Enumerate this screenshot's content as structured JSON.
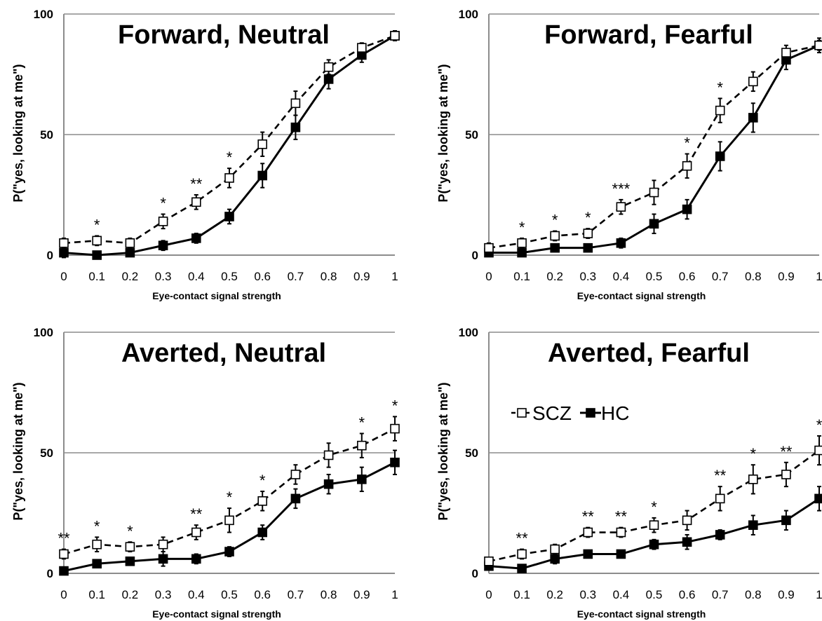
{
  "chart_data": [
    {
      "type": "line",
      "title": "Forward, Neutral",
      "xlabel": "Eye-contact signal strength",
      "ylabel": "P(\"yes, looking at me\")",
      "x": [
        "0",
        "0.1",
        "0.2",
        "0.3",
        "0.4",
        "0.5",
        "0.6",
        "0.7",
        "0.8",
        "0.9",
        "1"
      ],
      "y_ticks": [
        "0",
        "50",
        "100"
      ],
      "ylim": [
        0,
        100
      ],
      "grid": "horizontal",
      "series": [
        {
          "name": "SCZ",
          "line": "dashed",
          "marker": "open-square",
          "values": [
            5,
            6,
            5,
            14,
            22,
            32,
            46,
            63,
            78,
            86,
            91
          ],
          "errors": [
            2,
            2,
            2,
            3,
            3,
            4,
            5,
            5,
            3,
            2,
            2
          ]
        },
        {
          "name": "HC",
          "line": "solid",
          "marker": "filled-square",
          "values": [
            1,
            0,
            1,
            4,
            7,
            16,
            33,
            53,
            73,
            83,
            91
          ],
          "errors": [
            2,
            1,
            1,
            2,
            2,
            3,
            5,
            5,
            4,
            3,
            2
          ]
        }
      ],
      "significance": [
        {
          "x": "0.1",
          "label": "*"
        },
        {
          "x": "0.3",
          "label": "*"
        },
        {
          "x": "0.4",
          "label": "**"
        },
        {
          "x": "0.5",
          "label": "*"
        }
      ]
    },
    {
      "type": "line",
      "title": "Forward, Fearful",
      "xlabel": "Eye-contact signal strength",
      "ylabel": "P(\"yes, looking at me\")",
      "x": [
        "0",
        "0.1",
        "0.2",
        "0.3",
        "0.4",
        "0.5",
        "0.6",
        "0.7",
        "0.8",
        "0.9",
        "1"
      ],
      "y_ticks": [
        "0",
        "50",
        "100"
      ],
      "ylim": [
        0,
        100
      ],
      "grid": "horizontal",
      "series": [
        {
          "name": "SCZ",
          "line": "dashed",
          "marker": "open-square",
          "values": [
            3,
            5,
            8,
            9,
            20,
            26,
            37,
            60,
            72,
            84,
            87
          ],
          "errors": [
            2,
            2,
            2,
            2,
            3,
            5,
            5,
            5,
            4,
            3,
            2
          ]
        },
        {
          "name": "HC",
          "line": "solid",
          "marker": "filled-square",
          "values": [
            1,
            1,
            3,
            3,
            5,
            13,
            19,
            41,
            57,
            81,
            87
          ],
          "errors": [
            1,
            1,
            1,
            1,
            2,
            4,
            4,
            6,
            6,
            4,
            3
          ]
        }
      ],
      "significance": [
        {
          "x": "0.1",
          "label": "*"
        },
        {
          "x": "0.2",
          "label": "*"
        },
        {
          "x": "0.3",
          "label": "*"
        },
        {
          "x": "0.4",
          "label": "***"
        },
        {
          "x": "0.6",
          "label": "*"
        },
        {
          "x": "0.7",
          "label": "*"
        }
      ]
    },
    {
      "type": "line",
      "title": "Averted, Neutral",
      "xlabel": "Eye-contact signal strength",
      "ylabel": "P(\"yes, looking at me\")",
      "x": [
        "0",
        "0.1",
        "0.2",
        "0.3",
        "0.4",
        "0.5",
        "0.6",
        "0.7",
        "0.8",
        "0.9",
        "1"
      ],
      "y_ticks": [
        "0",
        "50",
        "100"
      ],
      "ylim": [
        0,
        100
      ],
      "grid": "horizontal",
      "series": [
        {
          "name": "SCZ",
          "line": "dashed",
          "marker": "open-square",
          "values": [
            8,
            12,
            11,
            12,
            17,
            22,
            30,
            41,
            49,
            53,
            60
          ],
          "errors": [
            2,
            3,
            2,
            3,
            3,
            5,
            4,
            4,
            5,
            5,
            5
          ]
        },
        {
          "name": "HC",
          "line": "solid",
          "marker": "filled-square",
          "values": [
            1,
            4,
            5,
            6,
            6,
            9,
            17,
            31,
            37,
            39,
            46
          ],
          "errors": [
            1,
            1,
            1,
            3,
            2,
            2,
            3,
            4,
            4,
            5,
            5
          ]
        }
      ],
      "significance": [
        {
          "x": "0",
          "label": "**"
        },
        {
          "x": "0.1",
          "label": "*"
        },
        {
          "x": "0.2",
          "label": "*"
        },
        {
          "x": "0.4",
          "label": "**"
        },
        {
          "x": "0.5",
          "label": "*"
        },
        {
          "x": "0.6",
          "label": "*"
        },
        {
          "x": "0.9",
          "label": "*"
        },
        {
          "x": "1",
          "label": "*"
        }
      ]
    },
    {
      "type": "line",
      "title": "Averted, Fearful",
      "xlabel": "Eye-contact signal strength",
      "ylabel": "P(\"yes, looking at me\")",
      "x": [
        "0",
        "0.1",
        "0.2",
        "0.3",
        "0.4",
        "0.5",
        "0.6",
        "0.7",
        "0.8",
        "0.9",
        "1"
      ],
      "y_ticks": [
        "0",
        "50",
        "100"
      ],
      "ylim": [
        0,
        100
      ],
      "grid": "horizontal",
      "legend": "upper-left",
      "series": [
        {
          "name": "SCZ",
          "line": "dashed",
          "marker": "open-square",
          "values": [
            5,
            8,
            10,
            17,
            17,
            20,
            22,
            31,
            39,
            41,
            51
          ],
          "errors": [
            1,
            2,
            2,
            2,
            2,
            3,
            4,
            5,
            6,
            5,
            6
          ]
        },
        {
          "name": "HC",
          "line": "solid",
          "marker": "filled-square",
          "values": [
            3,
            2,
            6,
            8,
            8,
            12,
            13,
            16,
            20,
            22,
            31
          ],
          "errors": [
            1,
            1,
            2,
            1,
            1,
            2,
            3,
            2,
            4,
            4,
            5
          ]
        }
      ],
      "significance": [
        {
          "x": "0.1",
          "label": "**"
        },
        {
          "x": "0.3",
          "label": "**"
        },
        {
          "x": "0.4",
          "label": "**"
        },
        {
          "x": "0.5",
          "label": "*"
        },
        {
          "x": "0.7",
          "label": "**"
        },
        {
          "x": "0.8",
          "label": "*"
        },
        {
          "x": "0.9",
          "label": "**"
        },
        {
          "x": "1",
          "label": "*"
        }
      ]
    }
  ]
}
